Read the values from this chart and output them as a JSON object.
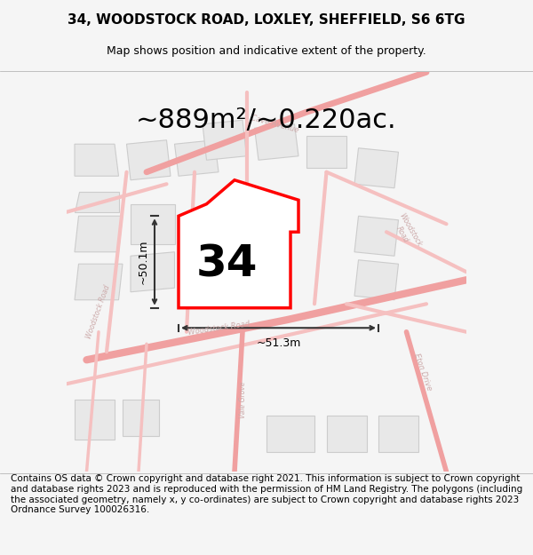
{
  "title_line1": "34, WOODSTOCK ROAD, LOXLEY, SHEFFIELD, S6 6TG",
  "title_line2": "Map shows position and indicative extent of the property.",
  "area_label": "~889m²/~0.220ac.",
  "number_label": "34",
  "dim_vertical": "~50.1m",
  "dim_horizontal": "~51.3m",
  "footer_text": "Contains OS data © Crown copyright and database right 2021. This information is subject to Crown copyright and database rights 2023 and is reproduced with the permission of HM Land Registry. The polygons (including the associated geometry, namely x, y co-ordinates) are subject to Crown copyright and database rights 2023 Ordnance Survey 100026316.",
  "bg_color": "#f5f5f5",
  "map_bg": "#ffffff",
  "road_color_main": "#f0a0a0",
  "road_color_light": "#f5c0c0",
  "building_fill": "#e8e8e8",
  "building_edge": "#cccccc",
  "highlight_color": "#ff0000",
  "dim_line_color": "#333333",
  "title_fontsize": 11,
  "subtitle_fontsize": 9,
  "area_fontsize": 22,
  "number_fontsize": 36,
  "footer_fontsize": 7.5
}
